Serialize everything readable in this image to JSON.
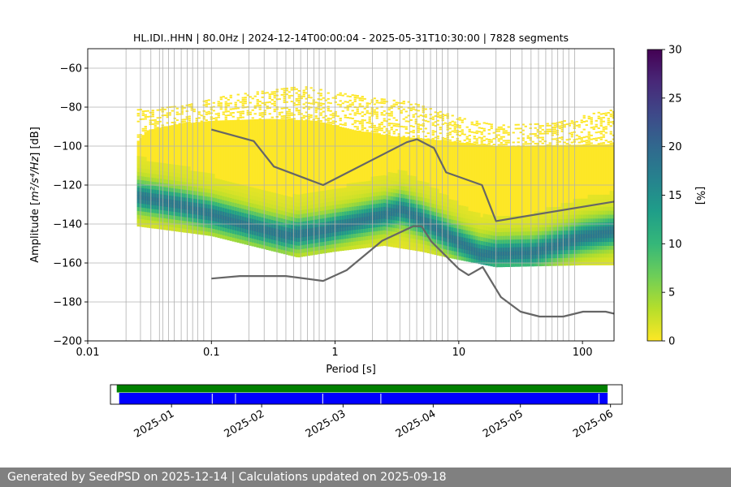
{
  "chart_data": {
    "type": "heatmap",
    "title": "HL.IDI..HHN | 80.0Hz | 2024-12-14T00:00:04 - 2025-05-31T10:30:00 | 7828 segments",
    "xlabel": "Period [s]",
    "ylabel_prefix": "Amplitude [",
    "ylabel_units": "m²/s⁴/Hz",
    "ylabel_suffix": "] [dB]",
    "x_scale": "log",
    "xlim": [
      0.01,
      180
    ],
    "ylim": [
      -200,
      -50
    ],
    "x_ticks": [
      {
        "value": 0.01,
        "label": "0.01"
      },
      {
        "value": 0.1,
        "label": "0.1"
      },
      {
        "value": 1,
        "label": "1"
      },
      {
        "value": 10,
        "label": "10"
      },
      {
        "value": 100,
        "label": "100"
      }
    ],
    "y_ticks": [
      {
        "value": -60,
        "label": "−60"
      },
      {
        "value": -80,
        "label": "−80"
      },
      {
        "value": -100,
        "label": "−100"
      },
      {
        "value": -120,
        "label": "−120"
      },
      {
        "value": -140,
        "label": "−140"
      },
      {
        "value": -160,
        "label": "−160"
      },
      {
        "value": -180,
        "label": "−180"
      },
      {
        "value": -200,
        "label": "−200"
      }
    ],
    "grid_periods": [
      0.0204,
      0.0267,
      0.0324,
      0.038,
      0.0404,
      0.045,
      0.05,
      0.057,
      0.0638,
      0.0705,
      0.0774,
      0.0867,
      0.1,
      0.201,
      0.267,
      0.339,
      0.4,
      0.463,
      0.527,
      0.598,
      0.674,
      0.744,
      0.83,
      1.0,
      2.0,
      2.64,
      3.34,
      4.0,
      4.57,
      5.21,
      5.91,
      6.63,
      7.36,
      8.17,
      9.83,
      20.0,
      26.2,
      32.5,
      38.4,
      44.1,
      50.5,
      56.8,
      63.1,
      69.7,
      77.5,
      86.6
    ],
    "pdf": {
      "period_range": [
        0.025,
        180
      ],
      "dominant": [
        [
          0.025,
          -125
        ],
        [
          0.06,
          -130
        ],
        [
          0.25,
          -142
        ],
        [
          0.4,
          -145
        ],
        [
          0.8,
          -143
        ],
        [
          2.0,
          -136
        ],
        [
          3.5,
          -132
        ],
        [
          5.0,
          -137
        ],
        [
          8.0,
          -145
        ],
        [
          15.0,
          -155
        ],
        [
          40.0,
          -154
        ],
        [
          100.0,
          -146
        ],
        [
          180.0,
          -143
        ]
      ],
      "lower_edge": [
        [
          0.025,
          -140
        ],
        [
          0.1,
          -145
        ],
        [
          0.5,
          -156
        ],
        [
          1.0,
          -153
        ],
        [
          2.5,
          -150
        ],
        [
          5.0,
          -153
        ],
        [
          8.0,
          -156
        ],
        [
          20.0,
          -161
        ],
        [
          100.0,
          -160
        ],
        [
          180.0,
          -160
        ]
      ],
      "upper_edge": [
        [
          0.025,
          -98
        ],
        [
          0.03,
          -92
        ],
        [
          0.05,
          -89
        ],
        [
          0.1,
          -87
        ],
        [
          0.3,
          -86
        ],
        [
          0.7,
          -87
        ],
        [
          1.5,
          -92
        ],
        [
          3.0,
          -95
        ],
        [
          5.0,
          -96
        ],
        [
          10.0,
          -98
        ],
        [
          20.0,
          -100
        ],
        [
          180.0,
          -99
        ]
      ],
      "scatter_top": [
        [
          0.025,
          -81
        ],
        [
          0.06,
          -79
        ],
        [
          0.13,
          -74
        ],
        [
          0.3,
          -71
        ],
        [
          0.55,
          -69
        ],
        [
          1.0,
          -72
        ],
        [
          2.0,
          -75
        ],
        [
          4.0,
          -77
        ],
        [
          10.0,
          -85
        ],
        [
          20.0,
          -89
        ],
        [
          60.0,
          -88
        ],
        [
          120.0,
          -83
        ],
        [
          180.0,
          -81
        ]
      ],
      "max_percent": 30
    },
    "noise_models": [
      {
        "points": [
          [
            0.1,
            -91.5
          ],
          [
            0.22,
            -97.4
          ],
          [
            0.32,
            -110.5
          ],
          [
            0.8,
            -120
          ],
          [
            3.8,
            -98
          ],
          [
            4.6,
            -96.5
          ],
          [
            6.3,
            -101
          ],
          [
            7.9,
            -113.5
          ],
          [
            15.4,
            -120
          ],
          [
            20.0,
            -138.5
          ],
          [
            180.0,
            -128.5
          ]
        ]
      },
      {
        "points": [
          [
            0.1,
            -168
          ],
          [
            0.17,
            -166.7
          ],
          [
            0.4,
            -166.7
          ],
          [
            0.8,
            -169.2
          ],
          [
            1.24,
            -163.7
          ],
          [
            2.4,
            -148.6
          ],
          [
            4.3,
            -141.1
          ],
          [
            5.0,
            -141.1
          ],
          [
            6.0,
            -149
          ],
          [
            10.0,
            -163
          ],
          [
            12.0,
            -166.2
          ],
          [
            15.6,
            -162.1
          ],
          [
            21.9,
            -177.5
          ],
          [
            31.6,
            -185
          ],
          [
            45.0,
            -187.5
          ],
          [
            70.0,
            -187.5
          ],
          [
            101.0,
            -185
          ],
          [
            154.0,
            -185
          ],
          [
            180.0,
            -186
          ]
        ]
      }
    ],
    "colorbar": {
      "label": "[%]",
      "min": 0,
      "max": 30,
      "ticks": [
        {
          "value": 0,
          "label": "0"
        },
        {
          "value": 5,
          "label": "5"
        },
        {
          "value": 10,
          "label": "10"
        },
        {
          "value": 15,
          "label": "15"
        },
        {
          "value": 20,
          "label": "20"
        },
        {
          "value": 25,
          "label": "25"
        },
        {
          "value": 30,
          "label": "30"
        }
      ],
      "colors": [
        "#fde725",
        "#b5de2b",
        "#6ece58",
        "#35b779",
        "#1f9e89",
        "#26828e",
        "#31688e",
        "#3e4989",
        "#482878",
        "#440154"
      ]
    },
    "timeline": {
      "start": "2024-12-11",
      "end": "2025-06-05",
      "coverage_start": "2024-12-14",
      "coverage_end": "2025-05-31",
      "gap_dates": [
        "2025-01-15",
        "2025-01-23",
        "2025-02-22",
        "2025-03-14",
        "2025-05-28"
      ],
      "coverage_color": "#008000",
      "data_color": "#0000ff",
      "ticks": [
        {
          "date": "2025-01-01",
          "label": "2025-01"
        },
        {
          "date": "2025-02-01",
          "label": "2025-02"
        },
        {
          "date": "2025-03-01",
          "label": "2025-03"
        },
        {
          "date": "2025-04-01",
          "label": "2025-04"
        },
        {
          "date": "2025-05-01",
          "label": "2025-05"
        },
        {
          "date": "2025-06-01",
          "label": "2025-06"
        }
      ]
    }
  },
  "footer": {
    "text": "Generated by SeedPSD on 2025-12-14 | Calculations updated on 2025-09-18"
  },
  "colors": {
    "grid": "#b0b0b0",
    "noise_model": "#666666",
    "footer_bg": "#808080"
  }
}
